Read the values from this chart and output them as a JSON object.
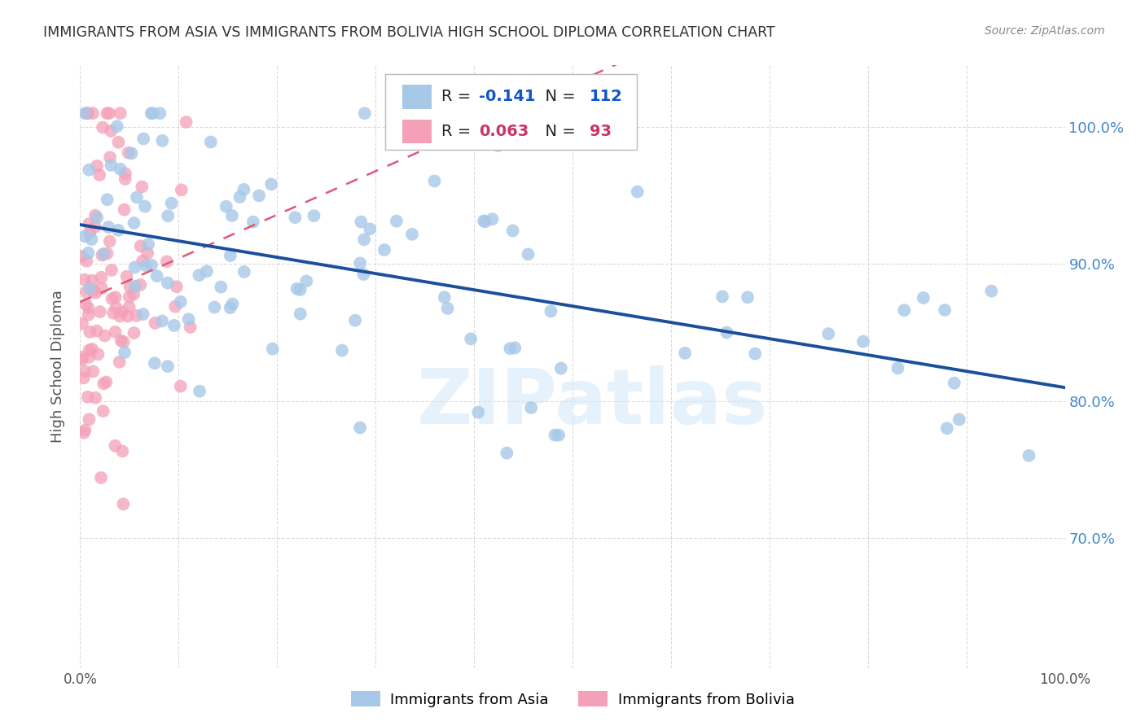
{
  "title": "IMMIGRANTS FROM ASIA VS IMMIGRANTS FROM BOLIVIA HIGH SCHOOL DIPLOMA CORRELATION CHART",
  "source": "Source: ZipAtlas.com",
  "ylabel": "High School Diploma",
  "ytick_labels": [
    "100.0%",
    "90.0%",
    "80.0%",
    "70.0%"
  ],
  "ytick_values": [
    1.0,
    0.9,
    0.8,
    0.7
  ],
  "xlim": [
    0.0,
    1.0
  ],
  "ylim": [
    0.605,
    1.045
  ],
  "R_asia": -0.141,
  "N_asia": 112,
  "R_bolivia": 0.063,
  "N_bolivia": 93,
  "asia_color": "#a8c8e8",
  "bolivia_color": "#f4a0b8",
  "trendline_asia_color": "#1a4f9c",
  "trendline_bolivia_color": "#e05878",
  "background_color": "#ffffff",
  "grid_color": "#cccccc",
  "title_color": "#333333",
  "axis_label_color": "#555555",
  "right_ytick_color": "#4488cc",
  "watermark_color": "#d0e8f8",
  "watermark_text": "ZIPatlas",
  "legend_R_color_asia": "#1155cc",
  "legend_N_color_asia": "#1155cc",
  "legend_R_color_bolivia": "#cc3366",
  "legend_N_color_bolivia": "#cc3366"
}
